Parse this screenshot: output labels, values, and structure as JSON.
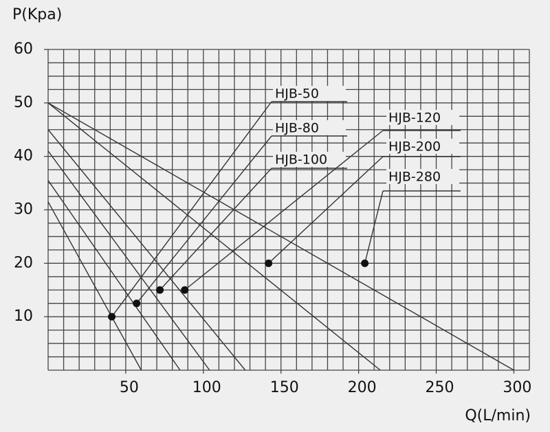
{
  "chart_data": {
    "type": "line",
    "y_label": "P(Kpa)",
    "x_label": "Q(L/min)",
    "xlim": [
      0,
      310
    ],
    "ylim": [
      0,
      60
    ],
    "xticks": [
      50,
      100,
      150,
      200,
      250,
      300
    ],
    "yticks": [
      10,
      20,
      30,
      40,
      50,
      60
    ],
    "grid": true,
    "grid_x_step": 10,
    "grid_y_step": 2.5,
    "color": "#333333",
    "series": [
      {
        "name": "HJB-50",
        "x": [
          0,
          60
        ],
        "values": [
          31.5,
          0
        ],
        "point_x": 41,
        "point_y": 10
      },
      {
        "name": "HJB-80",
        "x": [
          0,
          85
        ],
        "values": [
          35.5,
          0
        ],
        "point_x": 57,
        "point_y": 12.5
      },
      {
        "name": "HJB-100",
        "x": [
          0,
          104
        ],
        "values": [
          41,
          0
        ],
        "point_x": 72,
        "point_y": 15
      },
      {
        "name": "HJB-120",
        "x": [
          0,
          127
        ],
        "values": [
          45,
          0
        ],
        "point_x": 88,
        "point_y": 15
      },
      {
        "name": "HJB-200",
        "x": [
          0,
          214
        ],
        "values": [
          50,
          0
        ],
        "point_x": 142,
        "point_y": 20
      },
      {
        "name": "HJB-280",
        "x": [
          0,
          300
        ],
        "values": [
          50,
          0
        ],
        "point_x": 204,
        "point_y": 20
      }
    ]
  }
}
